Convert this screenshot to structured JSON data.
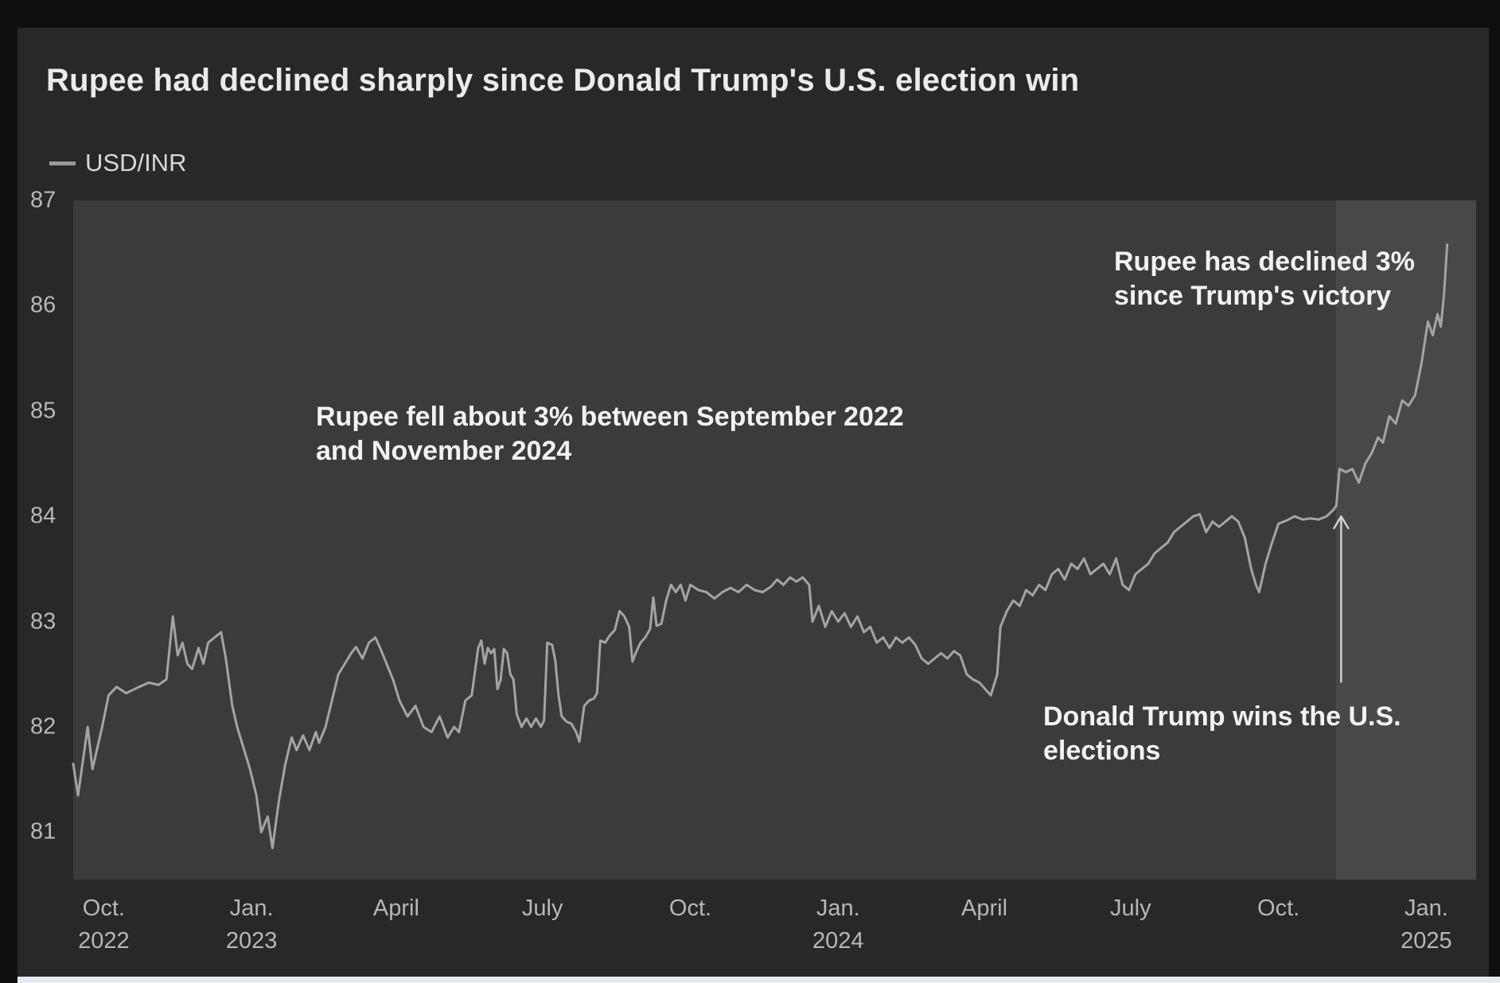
{
  "header": {
    "title": "Rupee had declined sharply since Donald Trump's U.S. election win"
  },
  "legend": {
    "label": "USD/INR"
  },
  "annotations": {
    "fall": {
      "line1": "Rupee fell about 3% between September 2022",
      "line2": "and November 2024"
    },
    "decline": {
      "line1": "Rupee has declined 3%",
      "line2": "since Trump's victory"
    },
    "election": {
      "line1": "Donald Trump wins the U.S.",
      "line2": "elections"
    }
  },
  "colors": {
    "page_bg": "#0e0f10",
    "card_bg": "#272829",
    "plot_bg": "#3a3b3d",
    "highlight_bg": "#47484a",
    "line": "#a2a4a6",
    "arrow": "#ced1d3",
    "title_text": "#e9ebec",
    "tick_text": "#b5b7b9",
    "annotation_text": "#f0f2f3",
    "bottom_strip": "#e7ebf1"
  },
  "chart_data": {
    "type": "line",
    "title": "Rupee had declined sharply since Donald Trump's U.S. election win",
    "xlabel": "",
    "ylabel": "",
    "ylim": [
      80.55,
      87
    ],
    "grid": false,
    "legend_position": "top-left",
    "x_range": [
      "2022-09-12",
      "2025-02-01"
    ],
    "y_ticks": [
      87,
      86,
      85,
      84,
      83,
      82,
      81
    ],
    "x_ticks": [
      {
        "date": "2022-10-01",
        "line1": "Oct.",
        "line2": "2022"
      },
      {
        "date": "2023-01-01",
        "line1": "Jan.",
        "line2": "2023"
      },
      {
        "date": "2023-04-01",
        "line1": "April",
        "line2": ""
      },
      {
        "date": "2023-07-01",
        "line1": "July",
        "line2": ""
      },
      {
        "date": "2023-10-01",
        "line1": "Oct.",
        "line2": ""
      },
      {
        "date": "2024-01-01",
        "line1": "Jan.",
        "line2": "2024"
      },
      {
        "date": "2024-04-01",
        "line1": "April",
        "line2": ""
      },
      {
        "date": "2024-07-01",
        "line1": "July",
        "line2": ""
      },
      {
        "date": "2024-10-01",
        "line1": "Oct.",
        "line2": ""
      },
      {
        "date": "2025-01-01",
        "line1": "Jan.",
        "line2": "2025"
      }
    ],
    "highlight_from": "2024-11-06",
    "arrow": {
      "x_date": "2024-11-09",
      "from_value": 82.42,
      "to_value": 84.0
    },
    "series": [
      {
        "name": "USD/INR",
        "points": [
          [
            "2022-09-12",
            81.65
          ],
          [
            "2022-09-15",
            81.35
          ],
          [
            "2022-09-21",
            82.0
          ],
          [
            "2022-09-24",
            81.6
          ],
          [
            "2022-09-30",
            82.0
          ],
          [
            "2022-10-04",
            82.3
          ],
          [
            "2022-10-09",
            82.38
          ],
          [
            "2022-10-15",
            82.32
          ],
          [
            "2022-10-23",
            82.38
          ],
          [
            "2022-10-29",
            82.42
          ],
          [
            "2022-11-04",
            82.4
          ],
          [
            "2022-11-09",
            82.45
          ],
          [
            "2022-11-13",
            83.05
          ],
          [
            "2022-11-16",
            82.68
          ],
          [
            "2022-11-19",
            82.8
          ],
          [
            "2022-11-22",
            82.6
          ],
          [
            "2022-11-25",
            82.55
          ],
          [
            "2022-11-29",
            82.75
          ],
          [
            "2022-12-02",
            82.6
          ],
          [
            "2022-12-05",
            82.8
          ],
          [
            "2022-12-09",
            82.85
          ],
          [
            "2022-12-13",
            82.9
          ],
          [
            "2022-12-16",
            82.65
          ],
          [
            "2022-12-20",
            82.2
          ],
          [
            "2022-12-23",
            82.0
          ],
          [
            "2022-12-27",
            81.8
          ],
          [
            "2022-12-31",
            81.6
          ],
          [
            "2023-01-04",
            81.35
          ],
          [
            "2023-01-07",
            81.0
          ],
          [
            "2023-01-11",
            81.15
          ],
          [
            "2023-01-14",
            80.85
          ],
          [
            "2023-01-18",
            81.3
          ],
          [
            "2023-01-22",
            81.65
          ],
          [
            "2023-01-26",
            81.9
          ],
          [
            "2023-01-29",
            81.78
          ],
          [
            "2023-02-02",
            81.92
          ],
          [
            "2023-02-06",
            81.78
          ],
          [
            "2023-02-10",
            81.95
          ],
          [
            "2023-02-12",
            81.85
          ],
          [
            "2023-02-16",
            82.0
          ],
          [
            "2023-02-20",
            82.25
          ],
          [
            "2023-02-24",
            82.5
          ],
          [
            "2023-02-28",
            82.6
          ],
          [
            "2023-03-04",
            82.7
          ],
          [
            "2023-03-07",
            82.76
          ],
          [
            "2023-03-11",
            82.65
          ],
          [
            "2023-03-15",
            82.8
          ],
          [
            "2023-03-19",
            82.85
          ],
          [
            "2023-03-22",
            82.75
          ],
          [
            "2023-03-26",
            82.6
          ],
          [
            "2023-03-30",
            82.45
          ],
          [
            "2023-04-03",
            82.25
          ],
          [
            "2023-04-08",
            82.1
          ],
          [
            "2023-04-13",
            82.2
          ],
          [
            "2023-04-18",
            82.0
          ],
          [
            "2023-04-23",
            81.95
          ],
          [
            "2023-04-28",
            82.1
          ],
          [
            "2023-05-03",
            81.9
          ],
          [
            "2023-05-07",
            82.0
          ],
          [
            "2023-05-10",
            81.95
          ],
          [
            "2023-05-14",
            82.25
          ],
          [
            "2023-05-18",
            82.3
          ],
          [
            "2023-05-22",
            82.75
          ],
          [
            "2023-05-24",
            82.82
          ],
          [
            "2023-05-26",
            82.6
          ],
          [
            "2023-05-28",
            82.75
          ],
          [
            "2023-05-30",
            82.7
          ],
          [
            "2023-06-01",
            82.74
          ],
          [
            "2023-06-03",
            82.36
          ],
          [
            "2023-06-05",
            82.45
          ],
          [
            "2023-06-07",
            82.74
          ],
          [
            "2023-06-09",
            82.7
          ],
          [
            "2023-06-11",
            82.5
          ],
          [
            "2023-06-13",
            82.45
          ],
          [
            "2023-06-15",
            82.12
          ],
          [
            "2023-06-18",
            82.0
          ],
          [
            "2023-06-21",
            82.08
          ],
          [
            "2023-06-24",
            82.0
          ],
          [
            "2023-06-27",
            82.08
          ],
          [
            "2023-06-30",
            82.0
          ],
          [
            "2023-07-02",
            82.06
          ],
          [
            "2023-07-04",
            82.8
          ],
          [
            "2023-07-07",
            82.78
          ],
          [
            "2023-07-09",
            82.63
          ],
          [
            "2023-07-11",
            82.3
          ],
          [
            "2023-07-13",
            82.1
          ],
          [
            "2023-07-16",
            82.05
          ],
          [
            "2023-07-19",
            82.03
          ],
          [
            "2023-07-22",
            81.95
          ],
          [
            "2023-07-24",
            81.86
          ],
          [
            "2023-07-27",
            82.2
          ],
          [
            "2023-07-30",
            82.25
          ],
          [
            "2023-08-02",
            82.27
          ],
          [
            "2023-08-04",
            82.32
          ],
          [
            "2023-08-06",
            82.82
          ],
          [
            "2023-08-09",
            82.8
          ],
          [
            "2023-08-12",
            82.87
          ],
          [
            "2023-08-15",
            82.92
          ],
          [
            "2023-08-18",
            83.1
          ],
          [
            "2023-08-21",
            83.05
          ],
          [
            "2023-08-24",
            82.95
          ],
          [
            "2023-08-26",
            82.62
          ],
          [
            "2023-08-28",
            82.7
          ],
          [
            "2023-08-31",
            82.8
          ],
          [
            "2023-09-03",
            82.85
          ],
          [
            "2023-09-06",
            82.93
          ],
          [
            "2023-09-08",
            83.23
          ],
          [
            "2023-09-10",
            82.96
          ],
          [
            "2023-09-13",
            82.98
          ],
          [
            "2023-09-16",
            83.2
          ],
          [
            "2023-09-19",
            83.35
          ],
          [
            "2023-09-22",
            83.28
          ],
          [
            "2023-09-25",
            83.35
          ],
          [
            "2023-09-28",
            83.2
          ],
          [
            "2023-10-01",
            83.35
          ],
          [
            "2023-10-06",
            83.3
          ],
          [
            "2023-10-11",
            83.28
          ],
          [
            "2023-10-16",
            83.22
          ],
          [
            "2023-10-21",
            83.28
          ],
          [
            "2023-10-26",
            83.32
          ],
          [
            "2023-10-31",
            83.28
          ],
          [
            "2023-11-05",
            83.35
          ],
          [
            "2023-11-10",
            83.3
          ],
          [
            "2023-11-15",
            83.28
          ],
          [
            "2023-11-20",
            83.33
          ],
          [
            "2023-11-24",
            83.4
          ],
          [
            "2023-11-28",
            83.35
          ],
          [
            "2023-12-02",
            83.42
          ],
          [
            "2023-12-06",
            83.38
          ],
          [
            "2023-12-10",
            83.42
          ],
          [
            "2023-12-14",
            83.35
          ],
          [
            "2023-12-16",
            83.0
          ],
          [
            "2023-12-20",
            83.15
          ],
          [
            "2023-12-24",
            82.95
          ],
          [
            "2023-12-28",
            83.1
          ],
          [
            "2024-01-01",
            83.0
          ],
          [
            "2024-01-05",
            83.08
          ],
          [
            "2024-01-09",
            82.95
          ],
          [
            "2024-01-13",
            83.05
          ],
          [
            "2024-01-17",
            82.9
          ],
          [
            "2024-01-21",
            82.95
          ],
          [
            "2024-01-25",
            82.8
          ],
          [
            "2024-01-29",
            82.85
          ],
          [
            "2024-02-02",
            82.75
          ],
          [
            "2024-02-06",
            82.85
          ],
          [
            "2024-02-10",
            82.8
          ],
          [
            "2024-02-14",
            82.85
          ],
          [
            "2024-02-18",
            82.78
          ],
          [
            "2024-02-22",
            82.65
          ],
          [
            "2024-02-26",
            82.6
          ],
          [
            "2024-03-01",
            82.65
          ],
          [
            "2024-03-05",
            82.7
          ],
          [
            "2024-03-09",
            82.65
          ],
          [
            "2024-03-13",
            82.72
          ],
          [
            "2024-03-17",
            82.68
          ],
          [
            "2024-03-21",
            82.5
          ],
          [
            "2024-03-25",
            82.45
          ],
          [
            "2024-03-29",
            82.42
          ],
          [
            "2024-04-02",
            82.35
          ],
          [
            "2024-04-05",
            82.3
          ],
          [
            "2024-04-09",
            82.5
          ],
          [
            "2024-04-11",
            82.95
          ],
          [
            "2024-04-15",
            83.1
          ],
          [
            "2024-04-19",
            83.2
          ],
          [
            "2024-04-23",
            83.15
          ],
          [
            "2024-04-27",
            83.3
          ],
          [
            "2024-05-01",
            83.25
          ],
          [
            "2024-05-05",
            83.35
          ],
          [
            "2024-05-09",
            83.3
          ],
          [
            "2024-05-13",
            83.45
          ],
          [
            "2024-05-17",
            83.5
          ],
          [
            "2024-05-21",
            83.4
          ],
          [
            "2024-05-25",
            83.55
          ],
          [
            "2024-05-29",
            83.5
          ],
          [
            "2024-06-02",
            83.6
          ],
          [
            "2024-06-06",
            83.45
          ],
          [
            "2024-06-10",
            83.5
          ],
          [
            "2024-06-14",
            83.55
          ],
          [
            "2024-06-18",
            83.45
          ],
          [
            "2024-06-22",
            83.6
          ],
          [
            "2024-06-26",
            83.35
          ],
          [
            "2024-06-30",
            83.3
          ],
          [
            "2024-07-04",
            83.45
          ],
          [
            "2024-07-08",
            83.5
          ],
          [
            "2024-07-12",
            83.55
          ],
          [
            "2024-07-16",
            83.65
          ],
          [
            "2024-07-20",
            83.7
          ],
          [
            "2024-07-24",
            83.75
          ],
          [
            "2024-07-28",
            83.85
          ],
          [
            "2024-08-01",
            83.9
          ],
          [
            "2024-08-05",
            83.95
          ],
          [
            "2024-08-09",
            84.0
          ],
          [
            "2024-08-13",
            84.02
          ],
          [
            "2024-08-17",
            83.85
          ],
          [
            "2024-08-21",
            83.95
          ],
          [
            "2024-08-25",
            83.9
          ],
          [
            "2024-08-29",
            83.95
          ],
          [
            "2024-09-02",
            84.0
          ],
          [
            "2024-09-06",
            83.95
          ],
          [
            "2024-09-10",
            83.8
          ],
          [
            "2024-09-14",
            83.5
          ],
          [
            "2024-09-17",
            83.35
          ],
          [
            "2024-09-19",
            83.28
          ],
          [
            "2024-09-23",
            83.55
          ],
          [
            "2024-09-27",
            83.75
          ],
          [
            "2024-10-01",
            83.93
          ],
          [
            "2024-10-06",
            83.96
          ],
          [
            "2024-10-11",
            84.0
          ],
          [
            "2024-10-16",
            83.97
          ],
          [
            "2024-10-21",
            83.98
          ],
          [
            "2024-10-26",
            83.97
          ],
          [
            "2024-10-31",
            84.0
          ],
          [
            "2024-11-04",
            84.06
          ],
          [
            "2024-11-06",
            84.1
          ],
          [
            "2024-11-08",
            84.45
          ],
          [
            "2024-11-12",
            84.42
          ],
          [
            "2024-11-16",
            84.45
          ],
          [
            "2024-11-20",
            84.32
          ],
          [
            "2024-11-24",
            84.5
          ],
          [
            "2024-11-28",
            84.6
          ],
          [
            "2024-12-02",
            84.75
          ],
          [
            "2024-12-05",
            84.7
          ],
          [
            "2024-12-09",
            84.95
          ],
          [
            "2024-12-13",
            84.88
          ],
          [
            "2024-12-17",
            85.1
          ],
          [
            "2024-12-21",
            85.05
          ],
          [
            "2024-12-25",
            85.15
          ],
          [
            "2024-12-29",
            85.45
          ],
          [
            "2025-01-02",
            85.85
          ],
          [
            "2025-01-05",
            85.72
          ],
          [
            "2025-01-08",
            85.92
          ],
          [
            "2025-01-10",
            85.8
          ],
          [
            "2025-01-12",
            86.1
          ],
          [
            "2025-01-14",
            86.58
          ]
        ]
      }
    ]
  }
}
